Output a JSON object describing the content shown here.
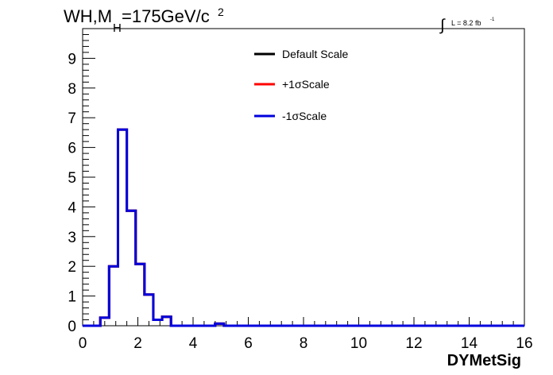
{
  "chart_data": {
    "type": "step",
    "title_main": "WH,M",
    "title_sub": "H",
    "title_rest": "=175GeV/c",
    "title_sup": "2",
    "lumi_label": "L = 8.2 fb",
    "lumi_sup": "-1",
    "xlabel": "DYMetSig",
    "ylabel": "",
    "xlim": [
      0,
      16
    ],
    "ylim": [
      0,
      10
    ],
    "x_ticks": [
      "0",
      "2",
      "4",
      "6",
      "8",
      "10",
      "12",
      "14",
      "16"
    ],
    "y_ticks": [
      "0",
      "1",
      "2",
      "3",
      "4",
      "5",
      "6",
      "7",
      "8",
      "9"
    ],
    "bin_edges": [
      0.0,
      0.32,
      0.64,
      0.96,
      1.28,
      1.6,
      1.92,
      2.24,
      2.56,
      2.88,
      3.2,
      3.52,
      3.84,
      4.16,
      4.48,
      4.8,
      5.12,
      5.44,
      5.76,
      6.08,
      6.4,
      6.72,
      7.04,
      7.36,
      7.68,
      8.0,
      8.32,
      8.64,
      8.96,
      9.28,
      9.6,
      9.92,
      10.24,
      10.56,
      10.88,
      11.2,
      11.52,
      11.84,
      12.16,
      12.48,
      12.8,
      13.12,
      13.44,
      13.76,
      14.08,
      14.4,
      14.72,
      15.04,
      15.36,
      15.68,
      16.0
    ],
    "series": [
      {
        "name": "Default Scale",
        "color": "#000000",
        "values": [
          0,
          0,
          0.27,
          2.0,
          6.6,
          3.87,
          2.08,
          1.05,
          0.2,
          0.3,
          0,
          0,
          0,
          0,
          0,
          0.07,
          0,
          0,
          0,
          0,
          0,
          0,
          0,
          0,
          0,
          0,
          0,
          0,
          0,
          0,
          0,
          0,
          0,
          0,
          0,
          0,
          0,
          0,
          0,
          0,
          0,
          0,
          0,
          0,
          0,
          0,
          0,
          0,
          0,
          0
        ]
      },
      {
        "name": "+1σScale",
        "color": "#ff0000",
        "values": [
          0,
          0,
          0.27,
          2.0,
          6.6,
          3.87,
          2.08,
          1.05,
          0.2,
          0.3,
          0,
          0,
          0,
          0,
          0,
          0.07,
          0,
          0,
          0,
          0,
          0,
          0,
          0,
          0,
          0,
          0,
          0,
          0,
          0,
          0,
          0,
          0,
          0,
          0,
          0,
          0,
          0,
          0,
          0,
          0,
          0,
          0,
          0,
          0,
          0,
          0,
          0,
          0,
          0,
          0
        ]
      },
      {
        "name": "-1σScale",
        "color": "#0000dd",
        "values": [
          0,
          0,
          0.27,
          2.0,
          6.6,
          3.87,
          2.08,
          1.05,
          0.2,
          0.3,
          0,
          0,
          0,
          0,
          0,
          0.07,
          0,
          0,
          0,
          0,
          0,
          0,
          0,
          0,
          0,
          0,
          0,
          0,
          0,
          0,
          0,
          0,
          0,
          0,
          0,
          0,
          0,
          0,
          0,
          0,
          0,
          0,
          0,
          0,
          0,
          0,
          0,
          0,
          0,
          0
        ]
      }
    ],
    "legend_position": "top-center",
    "grid": false
  }
}
